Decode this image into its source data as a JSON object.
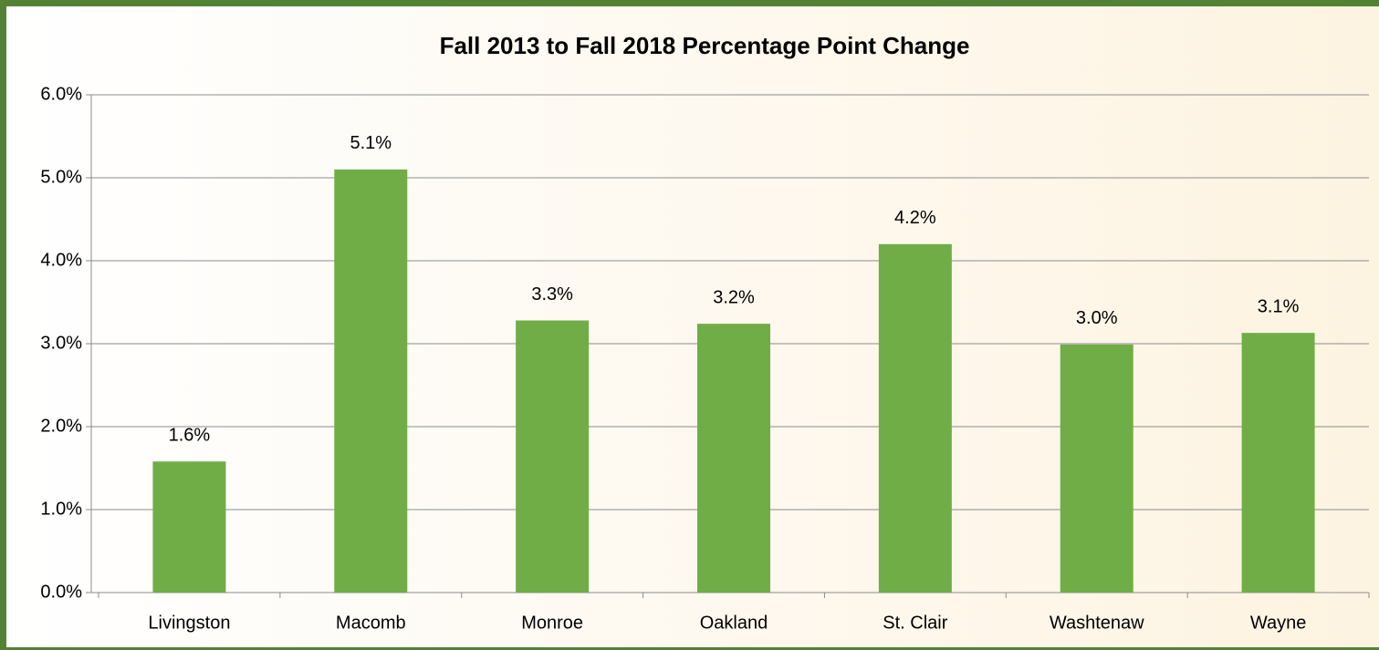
{
  "chart_data": {
    "type": "bar",
    "title": "Fall 2013 to Fall 2018 Percentage Point Change",
    "categories": [
      "Livingston",
      "Macomb",
      "Monroe",
      "Oakland",
      "St. Clair",
      "Washtenaw",
      "Wayne"
    ],
    "values": [
      1.58,
      5.1,
      3.28,
      3.24,
      4.2,
      2.99,
      3.13
    ],
    "value_labels": [
      "1.6%",
      "5.1%",
      "3.3%",
      "3.2%",
      "4.2%",
      "3.0%",
      "3.1%"
    ],
    "color": "#70ad47",
    "ylim": [
      0,
      6
    ],
    "yticks": [
      {
        "value": 0,
        "label": "0.0%"
      },
      {
        "value": 1,
        "label": "1.0%"
      },
      {
        "value": 2,
        "label": "2.0%"
      },
      {
        "value": 3,
        "label": "3.0%"
      },
      {
        "value": 4,
        "label": "4.0%"
      },
      {
        "value": 5,
        "label": "5.0%"
      },
      {
        "value": 6,
        "label": "6.0%"
      }
    ],
    "grid": true
  }
}
